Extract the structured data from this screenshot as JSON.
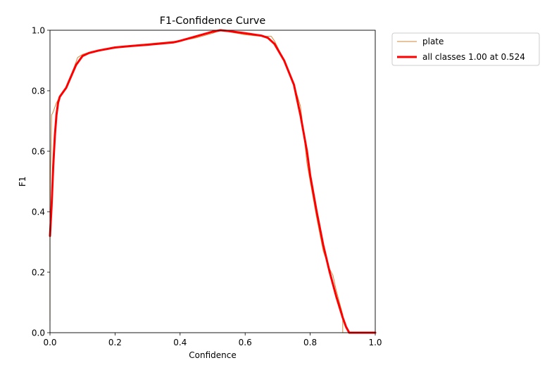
{
  "chart_data": {
    "type": "line",
    "title": "F1-Confidence Curve",
    "xlabel": "Confidence",
    "ylabel": "F1",
    "xlim": [
      0.0,
      1.0
    ],
    "ylim": [
      0.0,
      1.0
    ],
    "xticks": [
      "0.0",
      "0.2",
      "0.4",
      "0.6",
      "0.8",
      "1.0"
    ],
    "yticks": [
      "0.0",
      "0.2",
      "0.4",
      "0.6",
      "0.8",
      "1.0"
    ],
    "grid": false,
    "legend_position": "upper right, outside plot",
    "series": [
      {
        "name": "plate",
        "color": "#d2893b",
        "linewidth": 1,
        "x": [
          0.0,
          0.0,
          0.001,
          0.003,
          0.005,
          0.01,
          0.013,
          0.02,
          0.03,
          0.035,
          0.045,
          0.06,
          0.075,
          0.085,
          0.1,
          0.13,
          0.2,
          0.3,
          0.4,
          0.45,
          0.5,
          0.524,
          0.55,
          0.6,
          0.65,
          0.68,
          0.69,
          0.72,
          0.75,
          0.77,
          0.78,
          0.79,
          0.8,
          0.82,
          0.84,
          0.86,
          0.87,
          0.88,
          0.89,
          0.9,
          0.9,
          0.93,
          1.0
        ],
        "y": [
          0.04,
          0.32,
          0.5,
          0.6,
          0.72,
          0.73,
          0.74,
          0.76,
          0.78,
          0.79,
          0.8,
          0.84,
          0.88,
          0.91,
          0.92,
          0.93,
          0.945,
          0.955,
          0.965,
          0.975,
          0.99,
          1.0,
          0.995,
          0.985,
          0.98,
          0.98,
          0.965,
          0.9,
          0.82,
          0.75,
          0.66,
          0.56,
          0.5,
          0.38,
          0.27,
          0.21,
          0.19,
          0.14,
          0.1,
          0.06,
          0.0,
          0.0,
          0.0
        ]
      },
      {
        "name": "all classes 1.00 at 0.524",
        "color": "#ff0000",
        "linewidth": 3,
        "x": [
          0.0,
          0.005,
          0.01,
          0.015,
          0.02,
          0.025,
          0.03,
          0.04,
          0.05,
          0.06,
          0.08,
          0.1,
          0.12,
          0.15,
          0.2,
          0.25,
          0.3,
          0.35,
          0.38,
          0.4,
          0.45,
          0.5,
          0.524,
          0.55,
          0.6,
          0.65,
          0.67,
          0.69,
          0.72,
          0.75,
          0.77,
          0.79,
          0.8,
          0.82,
          0.84,
          0.86,
          0.88,
          0.9,
          0.91,
          0.92,
          0.95,
          1.0
        ],
        "y": [
          0.32,
          0.42,
          0.55,
          0.65,
          0.72,
          0.76,
          0.78,
          0.795,
          0.81,
          0.835,
          0.885,
          0.915,
          0.925,
          0.933,
          0.943,
          0.948,
          0.952,
          0.957,
          0.96,
          0.965,
          0.98,
          0.995,
          1.0,
          0.997,
          0.99,
          0.982,
          0.975,
          0.955,
          0.9,
          0.82,
          0.72,
          0.6,
          0.52,
          0.4,
          0.29,
          0.2,
          0.12,
          0.05,
          0.02,
          0.0,
          0.0,
          0.0
        ]
      }
    ]
  }
}
